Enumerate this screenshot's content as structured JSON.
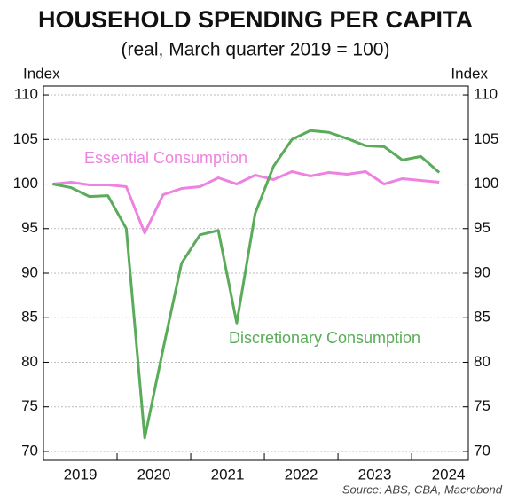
{
  "chart_data": {
    "type": "line",
    "title": "HOUSEHOLD SPENDING PER CAPITA",
    "subtitle": "(real, March quarter 2019 = 100)",
    "y_label": "Index",
    "y2_label": "Index",
    "source": "Source: ABS, CBA, Macrobond",
    "x": [
      2019.125,
      2019.375,
      2019.625,
      2019.875,
      2020.125,
      2020.375,
      2020.625,
      2020.875,
      2021.125,
      2021.375,
      2021.625,
      2021.875,
      2022.125,
      2022.375,
      2022.625,
      2022.875,
      2023.125,
      2023.375,
      2023.625,
      2023.875,
      2024.125,
      2024.375
    ],
    "xlim": [
      2019,
      2024.77
    ],
    "xticks": [
      2019,
      2020,
      2021,
      2022,
      2023,
      2024
    ],
    "ylim": [
      69,
      111
    ],
    "yticks": [
      70,
      75,
      80,
      85,
      90,
      95,
      100,
      105,
      110
    ],
    "grid": true,
    "series": [
      {
        "name": "Essential Consumption",
        "color": "#ee82e0",
        "values": [
          100,
          100.2,
          99.9,
          99.9,
          99.7,
          94.5,
          98.8,
          99.5,
          99.7,
          100.7,
          100,
          101,
          100.5,
          101.4,
          100.9,
          101.3,
          101.1,
          101.4,
          100,
          100.6,
          100.4,
          100.2
        ]
      },
      {
        "name": "Discretionary Consumption",
        "color": "#5aab5a",
        "values": [
          100,
          99.6,
          98.6,
          98.7,
          95,
          71.5,
          81.5,
          91.1,
          94.3,
          94.8,
          84.4,
          96.7,
          102,
          105,
          106,
          105.8,
          105.1,
          104.3,
          104.2,
          102.7,
          103.1,
          101.3
        ]
      }
    ]
  }
}
